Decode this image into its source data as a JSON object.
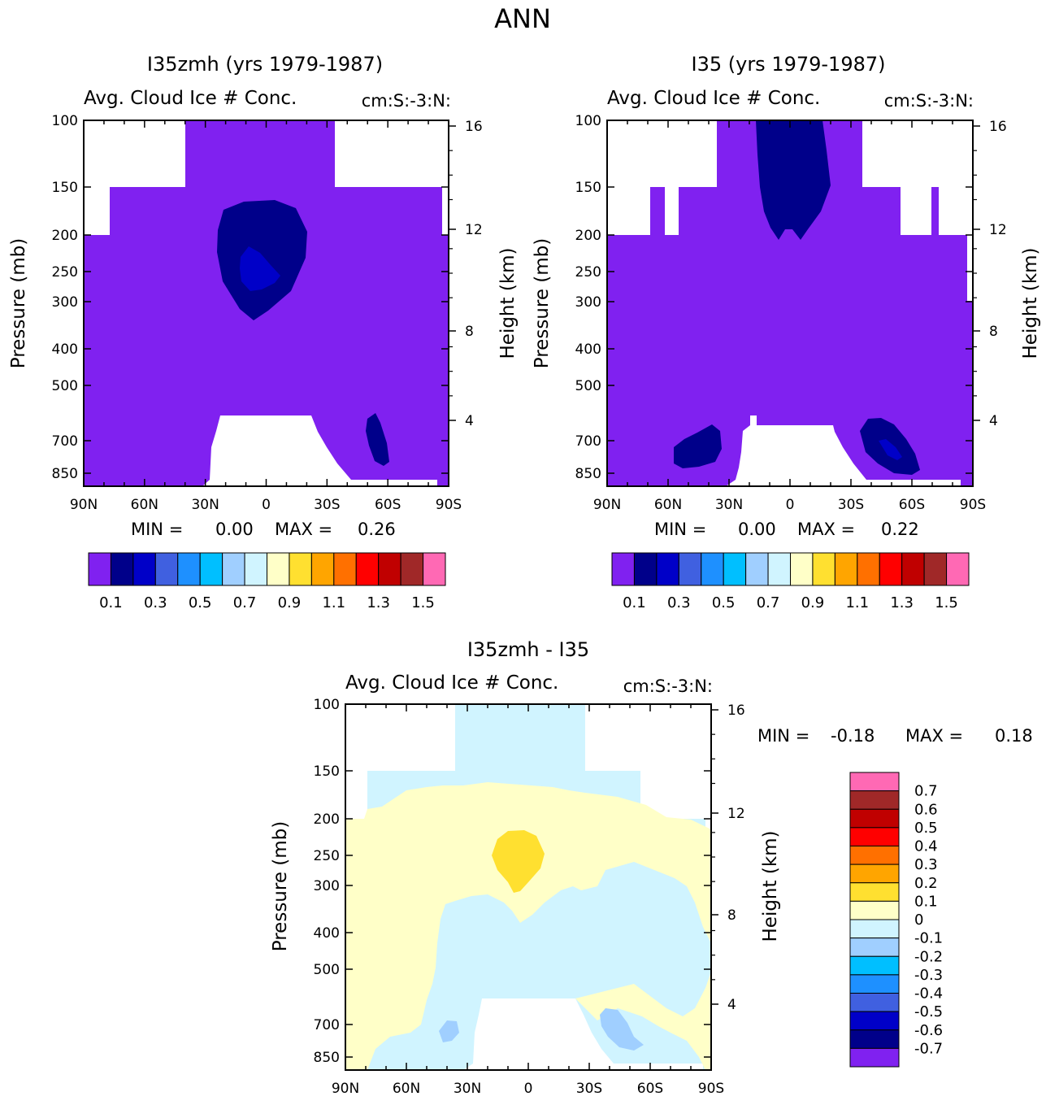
{
  "figure": {
    "title": "ANN"
  },
  "chart_data": [
    {
      "type": "heatmap",
      "title": "I35zmh (yrs 1979-1987)",
      "subtitle_left": "Avg. Cloud Ice # Conc.",
      "subtitle_right": "cm:S:-3:N:",
      "xlabel": "",
      "ylabel": "Pressure (mb)",
      "ylabel_right": "Height (km)",
      "x_ticks": [
        "90N",
        "60N",
        "30N",
        "0",
        "30S",
        "60S",
        "90S"
      ],
      "y_ticks": [
        "100",
        "150",
        "200",
        "250",
        "300",
        "400",
        "500",
        "700",
        "850"
      ],
      "y_ticks_right": [
        "16",
        "12",
        "8",
        "4"
      ],
      "xlim": [
        "90N",
        "90S"
      ],
      "ylim": [
        100,
        925
      ],
      "yscale": "log",
      "stats": {
        "min_label": "MIN =",
        "min": "0.00",
        "max_label": "MAX =",
        "max": "0.26"
      },
      "colorbar": {
        "orientation": "horizontal",
        "colors": [
          "#8021f0",
          "#00008a",
          "#0000c8",
          "#4060e0",
          "#1e90ff",
          "#00bfff",
          "#a0cfff",
          "#d0f4ff",
          "#ffffc8",
          "#ffe030",
          "#ffa500",
          "#ff7000",
          "#ff0000",
          "#c00000",
          "#a02828",
          "#ff69b4"
        ],
        "labels": [
          "0.1",
          "0.3",
          "0.5",
          "0.7",
          "0.9",
          "1.1",
          "1.3",
          "1.5"
        ]
      },
      "contours": [
        {
          "level": "0.0-0.1",
          "color": "#8021f0"
        },
        {
          "level": "0.1-0.2",
          "color": "#00008a",
          "location": "upper troposphere, 30N-20S, 170-330 mb"
        },
        {
          "level": "0.2-0.26",
          "color": "#0000c8",
          "location": "near 5N, 250 mb"
        }
      ]
    },
    {
      "type": "heatmap",
      "title": "I35 (yrs 1979-1987)",
      "subtitle_left": "Avg. Cloud Ice # Conc.",
      "subtitle_right": "cm:S:-3:N:",
      "xlabel": "",
      "ylabel": "Pressure (mb)",
      "ylabel_right": "Height (km)",
      "x_ticks": [
        "90N",
        "60N",
        "30N",
        "0",
        "30S",
        "60S",
        "90S"
      ],
      "y_ticks": [
        "100",
        "150",
        "200",
        "250",
        "300",
        "400",
        "500",
        "700",
        "850"
      ],
      "y_ticks_right": [
        "16",
        "12",
        "8",
        "4"
      ],
      "xlim": [
        "90N",
        "90S"
      ],
      "ylim": [
        100,
        925
      ],
      "yscale": "log",
      "stats": {
        "min_label": "MIN =",
        "min": "0.00",
        "max_label": "MAX =",
        "max": "0.22"
      },
      "colorbar": {
        "orientation": "horizontal",
        "colors": [
          "#8021f0",
          "#00008a",
          "#0000c8",
          "#4060e0",
          "#1e90ff",
          "#00bfff",
          "#a0cfff",
          "#d0f4ff",
          "#ffffc8",
          "#ffe030",
          "#ffa500",
          "#ff7000",
          "#ff0000",
          "#c00000",
          "#a02828",
          "#ff69b4"
        ],
        "labels": [
          "0.1",
          "0.3",
          "0.5",
          "0.7",
          "0.9",
          "1.1",
          "1.3",
          "1.5"
        ]
      },
      "contours": [
        {
          "level": "0.0-0.1",
          "color": "#8021f0"
        },
        {
          "level": "0.1-0.2",
          "color": "#00008a",
          "location": "tropical tropopause, 10N-20S, 100-200 mb; 40-60N and 40-60S near 700 mb"
        },
        {
          "level": "0.2-0.22",
          "color": "#0000c8",
          "location": "near 50S, 750 mb"
        }
      ]
    },
    {
      "type": "heatmap",
      "title": "I35zmh - I35",
      "subtitle_left": "Avg. Cloud Ice # Conc.",
      "subtitle_right": "cm:S:-3:N:",
      "xlabel": "",
      "ylabel": "Pressure (mb)",
      "ylabel_right": "Height (km)",
      "x_ticks": [
        "90N",
        "60N",
        "30N",
        "0",
        "30S",
        "60S",
        "90S"
      ],
      "y_ticks": [
        "100",
        "150",
        "200",
        "250",
        "300",
        "400",
        "500",
        "700",
        "850"
      ],
      "y_ticks_right": [
        "16",
        "12",
        "8",
        "4"
      ],
      "xlim": [
        "90N",
        "90S"
      ],
      "ylim": [
        100,
        925
      ],
      "yscale": "log",
      "stats": {
        "min_label": "MIN =",
        "min": "-0.18",
        "max_label": "MAX =",
        "max": "0.18"
      },
      "colorbar": {
        "orientation": "vertical",
        "colors": [
          "#ff69b4",
          "#a02828",
          "#c00000",
          "#ff0000",
          "#ff7000",
          "#ffa500",
          "#ffe030",
          "#ffffc8",
          "#d0f4ff",
          "#a0cfff",
          "#00bfff",
          "#1e90ff",
          "#4060e0",
          "#0000c8",
          "#00008a",
          "#8021f0"
        ],
        "labels": [
          "0.7",
          "0.6",
          "0.5",
          "0.4",
          "0.3",
          "0.2",
          "0.1",
          "0",
          "-0.1",
          "-0.2",
          "-0.3",
          "-0.4",
          "-0.5",
          "-0.6",
          "-0.7"
        ]
      },
      "contours": [
        {
          "level": "-0.1-0",
          "color": "#d0f4ff",
          "location": "stratosphere and lower/mid troposphere"
        },
        {
          "level": "0-0.1",
          "color": "#ffffc8",
          "location": "upper troposphere 150-400 mb and lower-level northern band"
        },
        {
          "level": "0.1-0.18",
          "color": "#ffe030",
          "location": "near 5N, 250 mb"
        },
        {
          "level": "-0.2--0.1",
          "color": "#a0cfff",
          "location": "near 40N and 45S, 700 mb"
        }
      ]
    }
  ]
}
